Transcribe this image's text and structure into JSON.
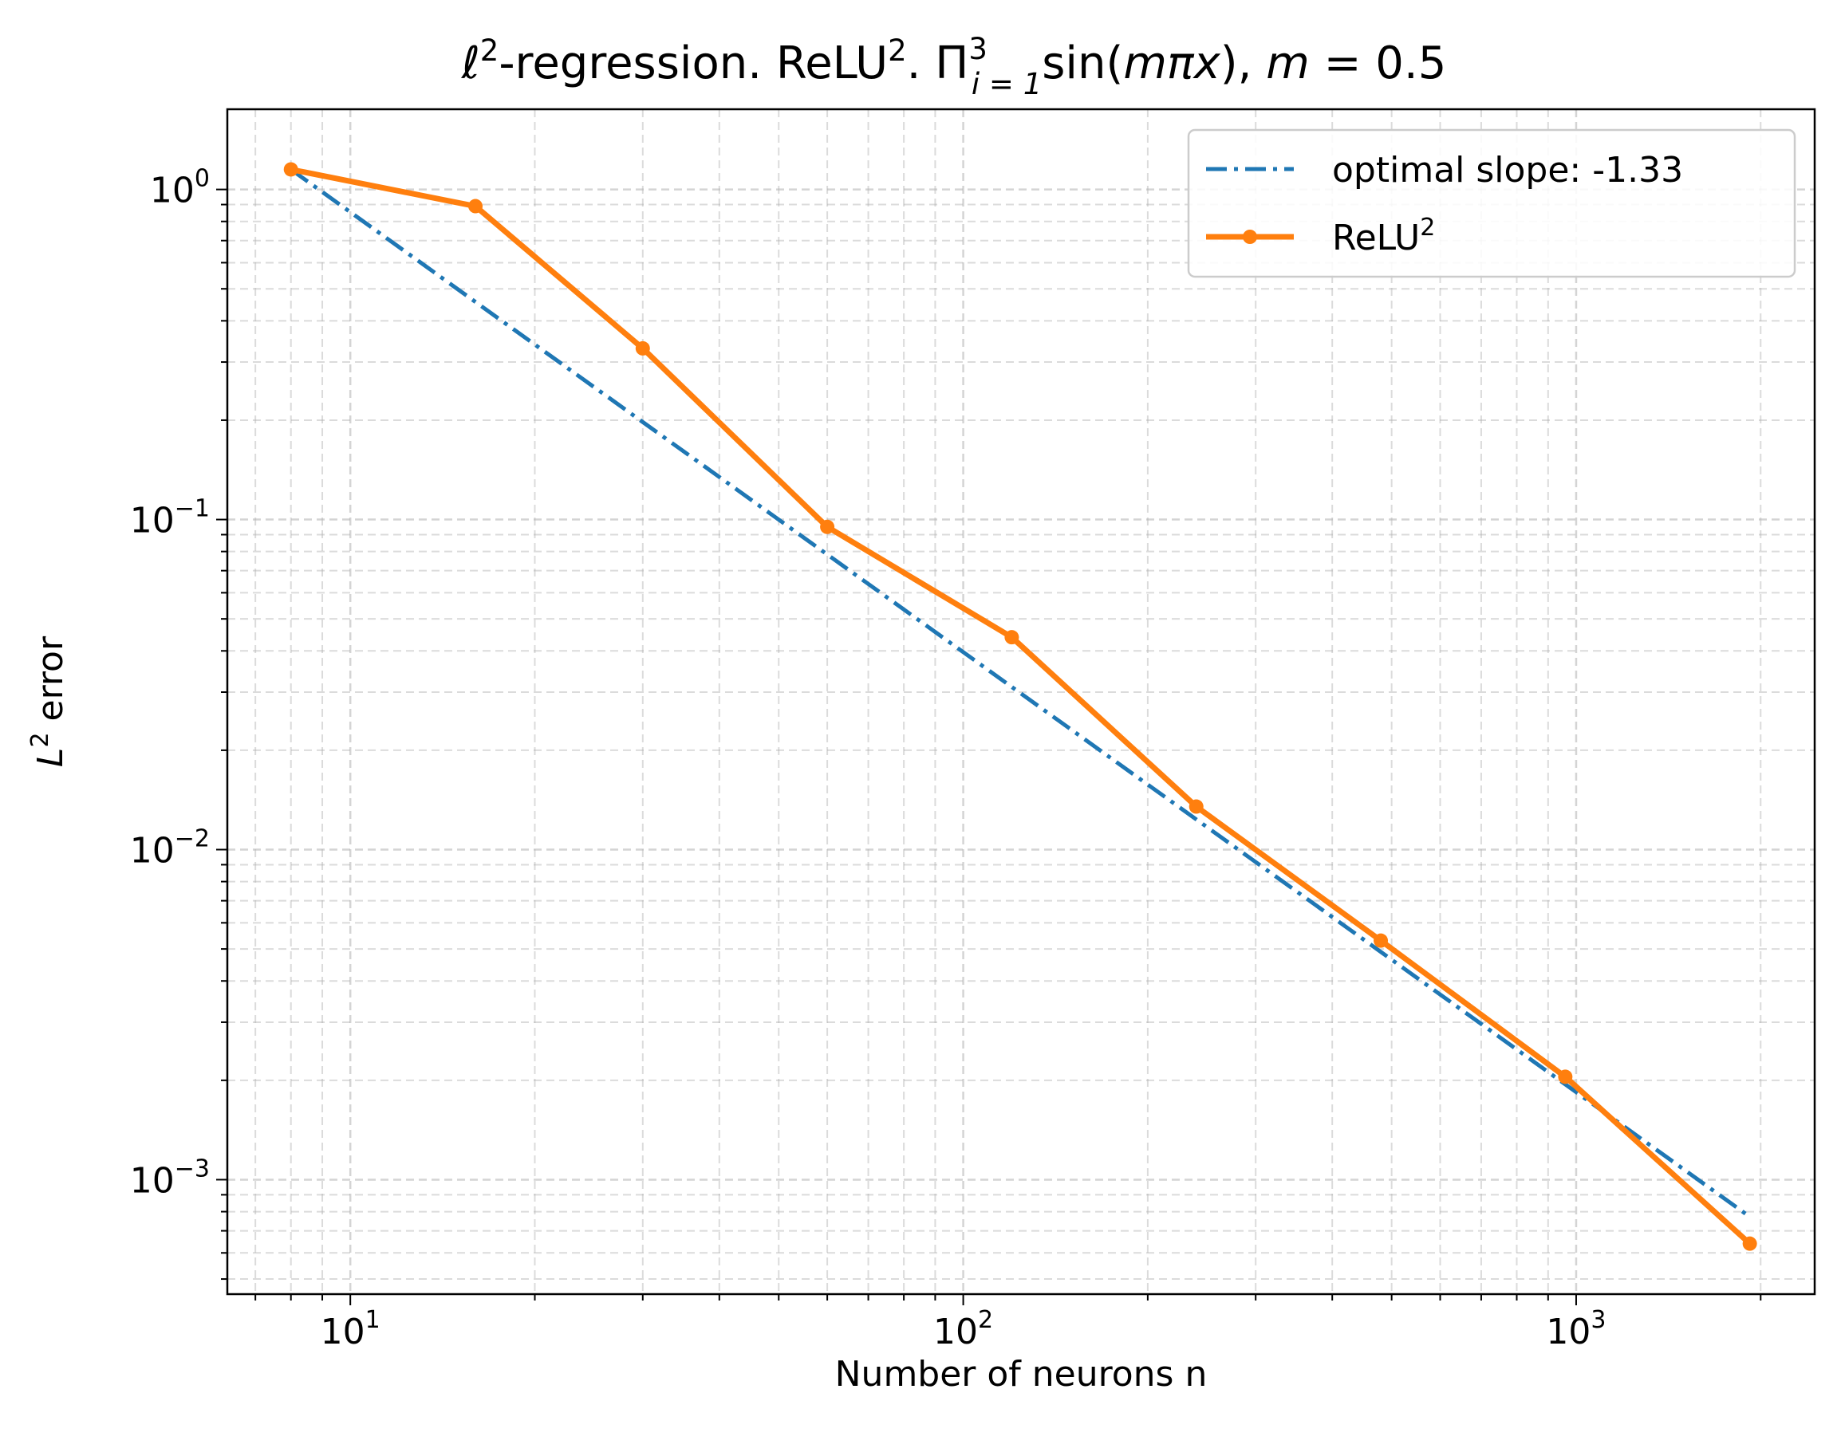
{
  "chart_data": {
    "type": "line",
    "title": {
      "ell": "ℓ",
      "sup1": "2",
      "part2": "-regression. ReLU",
      "sup2": "2",
      "part3": ". Π",
      "prod_sup": "3",
      "prod_sub": "i = 1",
      "part4": "sin(",
      "m": "m",
      "pi": "π",
      "x": "x",
      "part5": "), ",
      "m2": "m",
      "part6": " = 0.5"
    },
    "xlabel": "Number of neurons n",
    "ylabel": {
      "L": "L",
      "sup": "2",
      "rest": " error"
    },
    "xscale": "log",
    "yscale": "log",
    "xlim": [
      6.3,
      2450
    ],
    "ylim": [
      0.00045,
      1.75
    ],
    "x_ticks": [
      {
        "value": 10,
        "base": "10",
        "exp": "1"
      },
      {
        "value": 100,
        "base": "10",
        "exp": "2"
      },
      {
        "value": 1000,
        "base": "10",
        "exp": "3"
      }
    ],
    "y_ticks": [
      {
        "value": 1,
        "base": "10",
        "exp": "0"
      },
      {
        "value": 0.1,
        "base": "10",
        "exp": "−1"
      },
      {
        "value": 0.01,
        "base": "10",
        "exp": "−2"
      },
      {
        "value": 0.001,
        "base": "10",
        "exp": "−3"
      }
    ],
    "grid": true,
    "legend_position": "top-right",
    "series": [
      {
        "name": "optimal slope: -1.33",
        "style": "dashdot",
        "color": "#1f77b4",
        "x": [
          8,
          1920
        ],
        "y": [
          1.15,
          0.000772
        ]
      },
      {
        "name": "ReLU",
        "name_sup": "2",
        "style": "solid-markers",
        "color": "#ff7f0e",
        "x": [
          8,
          16,
          30,
          60,
          120,
          240,
          480,
          960,
          1920
        ],
        "y": [
          1.15,
          0.89,
          0.33,
          0.095,
          0.044,
          0.0135,
          0.0053,
          0.00205,
          0.00064
        ]
      }
    ]
  }
}
